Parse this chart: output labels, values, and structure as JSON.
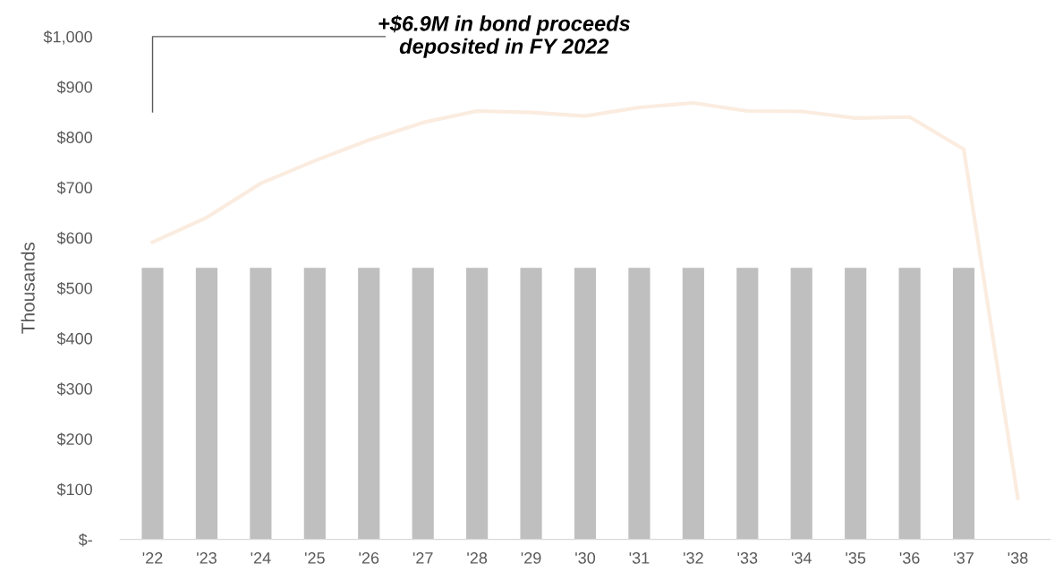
{
  "chart_data": {
    "type": "bar",
    "ylabel": "Thousands",
    "categories": [
      "'22",
      "'23",
      "'24",
      "'25",
      "'26",
      "'27",
      "'28",
      "'29",
      "'30",
      "'31",
      "'32",
      "'33",
      "'34",
      "'35",
      "'36",
      "'37",
      "'38"
    ],
    "series": [
      {
        "color": "#bfbfbf",
        "values": [
          540,
          540,
          540,
          540,
          540,
          540,
          540,
          540,
          540,
          540,
          540,
          540,
          540,
          540,
          540,
          540,
          null
        ]
      },
      {
        "type": "line",
        "color": "#fbece0",
        "values": [
          591,
          640,
          708,
          753,
          794,
          829,
          852,
          849,
          842,
          859,
          868,
          852,
          851,
          838,
          840,
          776,
          82
        ]
      }
    ],
    "ylim": [
      0,
      1000
    ],
    "yticks": [
      {
        "value": 0,
        "label": "$-"
      },
      {
        "value": 100,
        "label": "$100"
      },
      {
        "value": 200,
        "label": "$200"
      },
      {
        "value": 300,
        "label": "$300"
      },
      {
        "value": 400,
        "label": "$400"
      },
      {
        "value": 500,
        "label": "$500"
      },
      {
        "value": 600,
        "label": "$600"
      },
      {
        "value": 700,
        "label": "$700"
      },
      {
        "value": 800,
        "label": "$800"
      },
      {
        "value": 900,
        "label": "$900"
      },
      {
        "value": 1000,
        "label": "$1,000"
      }
    ],
    "annotations": [
      "+$6.9M in bond proceeds\ndeposited in FY 2022"
    ],
    "grid": false,
    "legend": false
  }
}
